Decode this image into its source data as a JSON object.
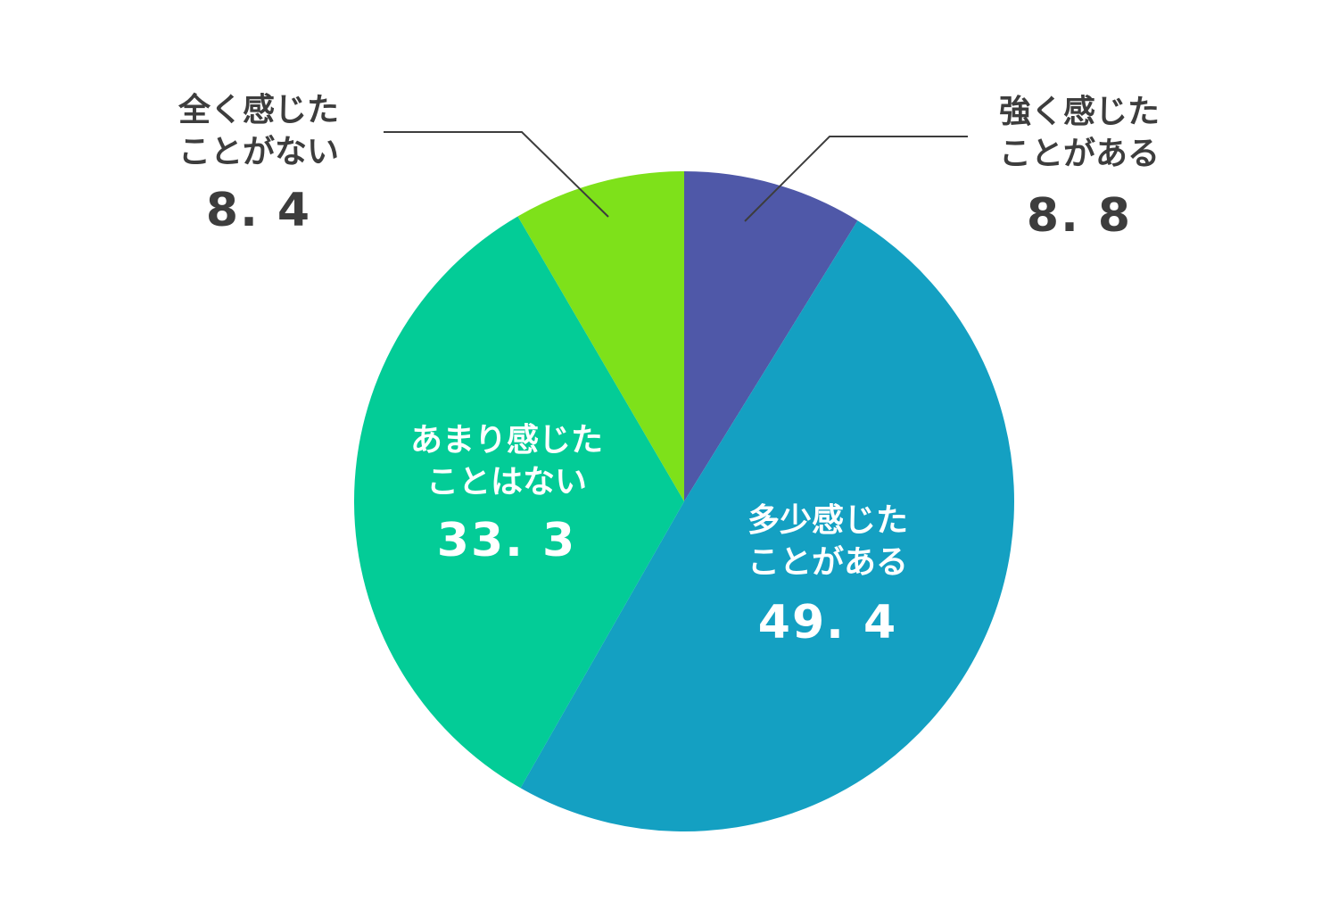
{
  "chart_data": {
    "type": "pie",
    "categories": [
      "強く感じた\nことがある",
      "多少感じた\nことがある",
      "あまり感じた\nことはない",
      "全く感じた\nことがない"
    ],
    "values": [
      8.8,
      49.4,
      33.3,
      8.4
    ],
    "value_labels": [
      "8. 8",
      "49. 4",
      "33. 3",
      "8. 4"
    ],
    "colors": [
      "#4f58a8",
      "#14a0c2",
      "#03cc97",
      "#7ee11a"
    ]
  }
}
